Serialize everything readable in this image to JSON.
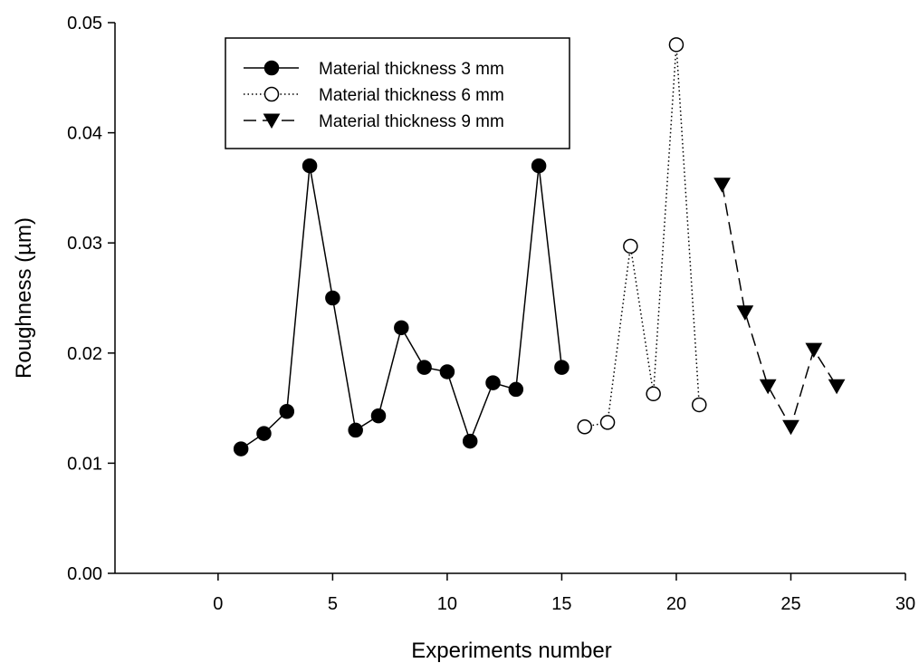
{
  "chart_data": {
    "type": "line",
    "title": "",
    "xlabel": "Experiments number",
    "ylabel": "Roughness (µm)",
    "xlim": [
      -4.5,
      30
    ],
    "ylim": [
      0,
      0.05
    ],
    "xticks": [
      0,
      5,
      10,
      15,
      20,
      25,
      30
    ],
    "xtick_labels": [
      "0",
      "5",
      "10",
      "15",
      "20",
      "25",
      "30"
    ],
    "yticks": [
      0,
      0.01,
      0.02,
      0.03,
      0.04,
      0.05
    ],
    "ytick_labels": [
      "0.00",
      "0.01",
      "0.02",
      "0.03",
      "0.04",
      "0.05"
    ],
    "grid": false,
    "legend_position": "top-left",
    "series": [
      {
        "name": "Material thickness 3 mm",
        "line_style": "solid",
        "marker": "filled-circle",
        "x": [
          1,
          2,
          3,
          4,
          5,
          6,
          7,
          8,
          9,
          10,
          11,
          12,
          13,
          14,
          15
        ],
        "y": [
          0.0113,
          0.0127,
          0.0147,
          0.037,
          0.025,
          0.013,
          0.0143,
          0.0223,
          0.0187,
          0.0183,
          0.012,
          0.0173,
          0.0167,
          0.037,
          0.0187
        ]
      },
      {
        "name": "Material thickness 6 mm",
        "line_style": "dotted",
        "marker": "open-circle",
        "x": [
          16,
          17,
          18,
          19,
          20,
          21
        ],
        "y": [
          0.0133,
          0.0137,
          0.0297,
          0.0163,
          0.048,
          0.0153
        ]
      },
      {
        "name": "Material thickness 9 mm",
        "line_style": "dashed",
        "marker": "filled-triangle-down",
        "x": [
          22,
          23,
          24,
          25,
          26,
          27
        ],
        "y": [
          0.0353,
          0.0237,
          0.017,
          0.0133,
          0.0203,
          0.017
        ]
      }
    ]
  }
}
